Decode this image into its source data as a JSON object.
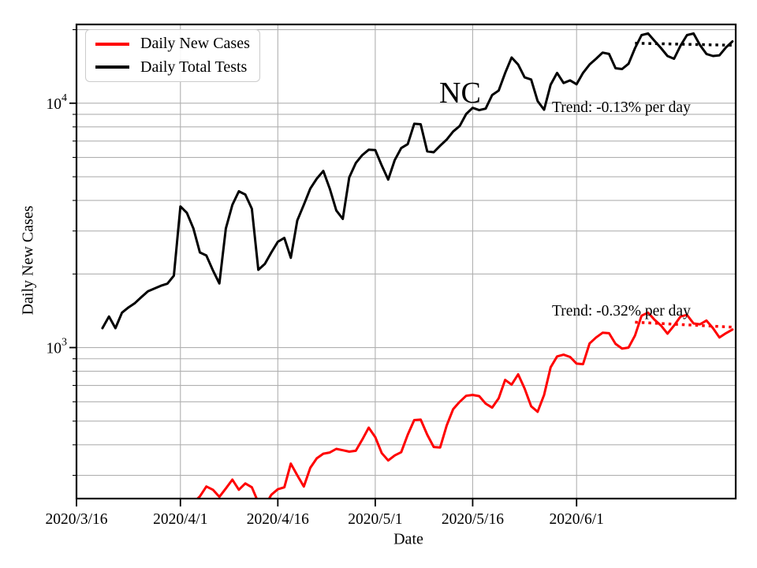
{
  "chart_data": {
    "type": "line",
    "state_label": "NC",
    "xlabel": "Date",
    "ylabel": "Daily New Cases",
    "yscale": "log",
    "ylim": [
      241,
      21000
    ],
    "xlim_days": [
      0,
      101.5
    ],
    "days_since": "2020/3/16",
    "grid": "on",
    "grid_color": "#b0b0b0",
    "x_ticks": [
      {
        "day": 0,
        "label": "2020/3/16"
      },
      {
        "day": 16,
        "label": "2020/4/1"
      },
      {
        "day": 31,
        "label": "2020/4/16"
      },
      {
        "day": 46,
        "label": "2020/5/1"
      },
      {
        "day": 61,
        "label": "2020/5/16"
      },
      {
        "day": 77,
        "label": "2020/6/1"
      }
    ],
    "y_ticks_major": [
      {
        "value": 1000,
        "base": "10",
        "exp": "3"
      },
      {
        "value": 10000,
        "base": "10",
        "exp": "4"
      }
    ],
    "y_gridlines_minor": [
      300,
      400,
      500,
      600,
      700,
      800,
      900,
      2000,
      3000,
      4000,
      5000,
      6000,
      7000,
      8000,
      9000,
      20000
    ],
    "legend": {
      "position": "upper left",
      "entries": [
        "Daily New Cases",
        "Daily Total Tests"
      ]
    },
    "series": [
      {
        "name": "Daily New Cases",
        "color": "#ff0000",
        "points": [
          [
            17,
            215
          ],
          [
            18,
            232
          ],
          [
            19,
            246
          ],
          [
            20,
            270
          ],
          [
            21,
            262
          ],
          [
            22,
            245
          ],
          [
            23,
            265
          ],
          [
            24,
            288
          ],
          [
            25,
            262
          ],
          [
            26,
            278
          ],
          [
            27,
            268
          ],
          [
            28,
            232
          ],
          [
            29,
            225
          ],
          [
            30,
            250
          ],
          [
            31,
            263
          ],
          [
            32,
            268
          ],
          [
            33,
            335
          ],
          [
            34,
            300
          ],
          [
            35,
            270
          ],
          [
            36,
            322
          ],
          [
            37,
            352
          ],
          [
            38,
            368
          ],
          [
            39,
            372
          ],
          [
            40,
            385
          ],
          [
            41,
            380
          ],
          [
            42,
            375
          ],
          [
            43,
            378
          ],
          [
            44,
            420
          ],
          [
            45,
            470
          ],
          [
            46,
            430
          ],
          [
            47,
            370
          ],
          [
            48,
            345
          ],
          [
            49,
            362
          ],
          [
            50,
            373
          ],
          [
            51,
            440
          ],
          [
            52,
            505
          ],
          [
            53,
            507
          ],
          [
            54,
            440
          ],
          [
            55,
            392
          ],
          [
            56,
            390
          ],
          [
            57,
            480
          ],
          [
            58,
            560
          ],
          [
            59,
            600
          ],
          [
            60,
            635
          ],
          [
            61,
            640
          ],
          [
            62,
            633
          ],
          [
            63,
            590
          ],
          [
            64,
            568
          ],
          [
            65,
            620
          ],
          [
            66,
            737
          ],
          [
            67,
            705
          ],
          [
            68,
            777
          ],
          [
            69,
            680
          ],
          [
            70,
            575
          ],
          [
            71,
            546
          ],
          [
            72,
            640
          ],
          [
            73,
            830
          ],
          [
            74,
            920
          ],
          [
            75,
            935
          ],
          [
            76,
            915
          ],
          [
            77,
            860
          ],
          [
            78,
            855
          ],
          [
            79,
            1040
          ],
          [
            80,
            1100
          ],
          [
            81,
            1150
          ],
          [
            82,
            1145
          ],
          [
            83,
            1035
          ],
          [
            84,
            990
          ],
          [
            85,
            1000
          ],
          [
            86,
            1120
          ],
          [
            87,
            1350
          ],
          [
            88,
            1390
          ],
          [
            89,
            1300
          ],
          [
            90,
            1230
          ],
          [
            91,
            1140
          ],
          [
            92,
            1230
          ],
          [
            93,
            1340
          ],
          [
            94,
            1360
          ],
          [
            95,
            1255
          ],
          [
            96,
            1245
          ],
          [
            97,
            1290
          ],
          [
            98,
            1200
          ],
          [
            99,
            1100
          ],
          [
            100,
            1145
          ],
          [
            101,
            1185
          ]
        ]
      },
      {
        "name": "Daily Total Tests",
        "color": "#000000",
        "points": [
          [
            4,
            1200
          ],
          [
            5,
            1340
          ],
          [
            6,
            1200
          ],
          [
            7,
            1390
          ],
          [
            8,
            1460
          ],
          [
            9,
            1520
          ],
          [
            10,
            1610
          ],
          [
            11,
            1700
          ],
          [
            12,
            1745
          ],
          [
            13,
            1790
          ],
          [
            14,
            1825
          ],
          [
            15,
            1970
          ],
          [
            16,
            3780
          ],
          [
            17,
            3560
          ],
          [
            18,
            3070
          ],
          [
            19,
            2450
          ],
          [
            20,
            2380
          ],
          [
            21,
            2070
          ],
          [
            22,
            1830
          ],
          [
            23,
            3070
          ],
          [
            24,
            3840
          ],
          [
            25,
            4360
          ],
          [
            26,
            4230
          ],
          [
            27,
            3700
          ],
          [
            28,
            2080
          ],
          [
            29,
            2200
          ],
          [
            30,
            2450
          ],
          [
            31,
            2710
          ],
          [
            32,
            2810
          ],
          [
            33,
            2330
          ],
          [
            34,
            3310
          ],
          [
            35,
            3840
          ],
          [
            36,
            4470
          ],
          [
            37,
            4910
          ],
          [
            38,
            5280
          ],
          [
            39,
            4470
          ],
          [
            40,
            3640
          ],
          [
            41,
            3360
          ],
          [
            42,
            4970
          ],
          [
            43,
            5690
          ],
          [
            44,
            6130
          ],
          [
            45,
            6450
          ],
          [
            46,
            6430
          ],
          [
            47,
            5560
          ],
          [
            48,
            4870
          ],
          [
            49,
            5850
          ],
          [
            50,
            6550
          ],
          [
            51,
            6800
          ],
          [
            52,
            8240
          ],
          [
            53,
            8200
          ],
          [
            54,
            6350
          ],
          [
            55,
            6300
          ],
          [
            56,
            6700
          ],
          [
            57,
            7100
          ],
          [
            58,
            7660
          ],
          [
            59,
            8070
          ],
          [
            60,
            9030
          ],
          [
            61,
            9570
          ],
          [
            62,
            9370
          ],
          [
            63,
            9500
          ],
          [
            64,
            10800
          ],
          [
            65,
            11260
          ],
          [
            66,
            13280
          ],
          [
            67,
            15380
          ],
          [
            68,
            14400
          ],
          [
            69,
            12750
          ],
          [
            70,
            12500
          ],
          [
            71,
            10200
          ],
          [
            72,
            9400
          ],
          [
            73,
            11900
          ],
          [
            74,
            13300
          ],
          [
            75,
            12100
          ],
          [
            76,
            12400
          ],
          [
            77,
            11950
          ],
          [
            78,
            13300
          ],
          [
            79,
            14400
          ],
          [
            80,
            15200
          ],
          [
            81,
            16100
          ],
          [
            82,
            15900
          ],
          [
            83,
            13900
          ],
          [
            84,
            13800
          ],
          [
            85,
            14500
          ],
          [
            86,
            16800
          ],
          [
            87,
            19000
          ],
          [
            88,
            19300
          ],
          [
            89,
            18000
          ],
          [
            90,
            16800
          ],
          [
            91,
            15600
          ],
          [
            92,
            15200
          ],
          [
            93,
            17200
          ],
          [
            94,
            19000
          ],
          [
            95,
            19300
          ],
          [
            96,
            17300
          ],
          [
            97,
            15900
          ],
          [
            98,
            15600
          ],
          [
            99,
            15700
          ],
          [
            100,
            16900
          ],
          [
            101,
            17900
          ]
        ]
      }
    ],
    "trend_lines": [
      {
        "series": "Daily Total Tests",
        "color": "#000000",
        "style": "dotted",
        "points": [
          [
            86,
            17600
          ],
          [
            101.5,
            17250
          ]
        ],
        "label": "Trend: -0.13% per day"
      },
      {
        "series": "Daily New Cases",
        "color": "#ff0000",
        "style": "dotted",
        "points": [
          [
            86,
            1270
          ],
          [
            101.5,
            1210
          ]
        ],
        "label": "Trend: -0.32% per day"
      }
    ]
  }
}
